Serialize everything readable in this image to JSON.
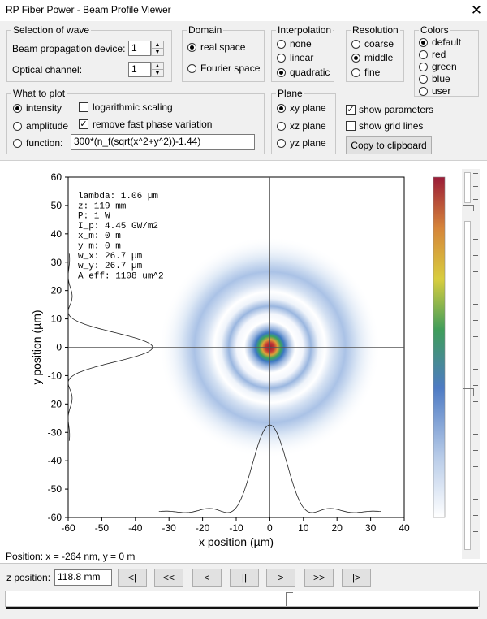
{
  "window": {
    "title": "RP Fiber Power - Beam Profile Viewer",
    "close_glyph": "✕"
  },
  "wave": {
    "legend": "Selection of wave",
    "device_label": "Beam propagation device:",
    "device_value": "1",
    "channel_label": "Optical channel:",
    "channel_value": "1"
  },
  "domain": {
    "legend": "Domain",
    "options": [
      "real space",
      "Fourier space"
    ],
    "selected": "real space"
  },
  "interpolation": {
    "legend": "Interpolation",
    "options": [
      "none",
      "linear",
      "quadratic"
    ],
    "selected": "quadratic"
  },
  "resolution": {
    "legend": "Resolution",
    "options": [
      "coarse",
      "middle",
      "fine"
    ],
    "selected": "middle"
  },
  "colors": {
    "legend": "Colors",
    "options": [
      "default",
      "red",
      "green",
      "blue",
      "user"
    ],
    "selected": "default"
  },
  "plot": {
    "legend": "What to plot",
    "options": [
      "intensity",
      "amplitude",
      "function:"
    ],
    "selected": "intensity",
    "log_scaling_label": "logarithmic scaling",
    "log_scaling": false,
    "remove_phase_label": "remove fast phase variation",
    "remove_phase": true,
    "function_value": "300*(n_f(sqrt(x^2+y^2))-1.44)"
  },
  "plane": {
    "legend": "Plane",
    "options": [
      "xy plane",
      "xz plane",
      "yz plane"
    ],
    "selected": "xy plane"
  },
  "options": {
    "show_params_label": "show parameters",
    "show_params": true,
    "show_grid_label": "show grid lines",
    "show_grid": false,
    "copy_label": "Copy to clipboard"
  },
  "chart_data": {
    "type": "heatmap",
    "xlabel": "x position (µm)",
    "ylabel": "y position (µm)",
    "xlim": [
      -60,
      40
    ],
    "ylim": [
      -60,
      60
    ],
    "xticks": [
      -60,
      -50,
      -40,
      -30,
      -20,
      -10,
      0,
      10,
      20,
      30,
      40
    ],
    "yticks": [
      -60,
      -50,
      -40,
      -30,
      -20,
      -10,
      0,
      10,
      20,
      30,
      40,
      50,
      60
    ],
    "grid": false,
    "colormap": [
      "#ffffff",
      "#9bb7de",
      "#4a78c2",
      "#3f9b5c",
      "#cfc43a",
      "#d88a38",
      "#9e2038"
    ],
    "ring_radii_um": [
      0,
      12.5,
      25
    ],
    "parameters": [
      "lambda: 1.06 µm",
      "z: 119 mm",
      "P: 1 W",
      "I_p: 4.45 GW/m2",
      "x_m: 0 m",
      "y_m: 0 m",
      "w_x: 26.7 µm",
      "w_y: 26.7 µm",
      "A_eff: 1108 um^2"
    ]
  },
  "status": {
    "position_text": "Position: x = -264 nm, y = 0 m"
  },
  "zbar": {
    "label": "z position:",
    "value": "118.8 mm",
    "buttons": [
      "<|",
      "<<",
      "<",
      "||",
      ">",
      ">>",
      "|>"
    ]
  }
}
